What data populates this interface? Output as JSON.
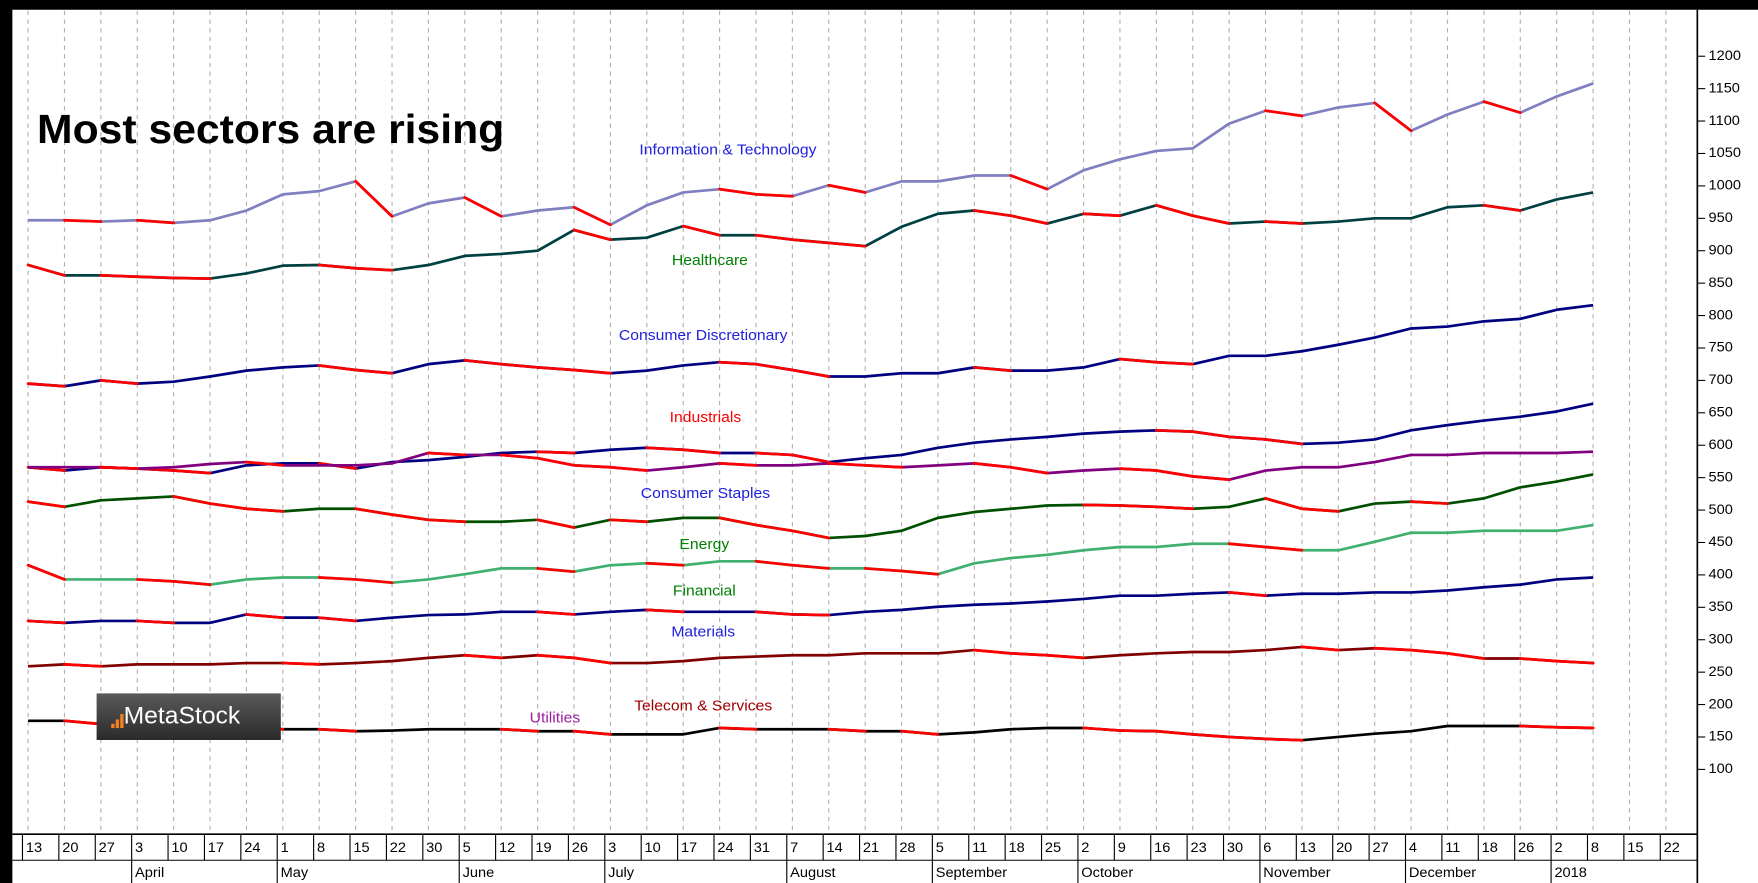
{
  "chart_data": {
    "type": "line",
    "title": "Most sectors are rising",
    "watermark": "MetaStock",
    "categories": [
      "13",
      "20",
      "27",
      "3",
      "10",
      "17",
      "24",
      "1",
      "8",
      "15",
      "22",
      "30",
      "5",
      "12",
      "19",
      "26",
      "3",
      "10",
      "17",
      "24",
      "31",
      "7",
      "14",
      "21",
      "28",
      "5",
      "11",
      "18",
      "25",
      "2",
      "9",
      "16",
      "23",
      "30",
      "6",
      "13",
      "20",
      "27",
      "4",
      "11",
      "18",
      "26",
      "2",
      "8",
      "15",
      "22"
    ],
    "month_labels": [
      "April",
      "May",
      "June",
      "July",
      "August",
      "September",
      "October",
      "November",
      "December",
      "2018"
    ],
    "down_color": "#ff0000",
    "series": [
      {
        "name": "Information & Technology",
        "color": "#8080c0",
        "label_color": "#2020e0",
        "values": [
          947,
          947,
          945,
          947,
          943,
          947,
          962,
          987,
          992,
          1007,
          953,
          973,
          982,
          953,
          962,
          967,
          940,
          970,
          990,
          995,
          987,
          984,
          1001,
          990,
          1007,
          1007,
          1016,
          1016,
          995,
          1024,
          1041,
          1054,
          1058,
          1096,
          1116,
          1108,
          1121,
          1128,
          1085,
          1110,
          1130,
          1113,
          1138,
          1158,
          null,
          null
        ]
      },
      {
        "name": "Healthcare",
        "color": "#004040",
        "label_color": "#008000",
        "values": [
          878,
          862,
          862,
          860,
          858,
          857,
          865,
          877,
          878,
          873,
          870,
          878,
          892,
          895,
          900,
          932,
          917,
          920,
          938,
          924,
          924,
          917,
          912,
          907,
          937,
          957,
          962,
          954,
          942,
          957,
          954,
          970,
          954,
          942,
          945,
          942,
          945,
          950,
          950,
          967,
          970,
          962,
          979,
          990,
          null,
          null
        ]
      },
      {
        "name": "Consumer Discretionary",
        "color": "#000080",
        "label_color": "#2020e0",
        "values": [
          695,
          691,
          700,
          695,
          698,
          706,
          715,
          720,
          723,
          716,
          711,
          725,
          731,
          725,
          720,
          716,
          711,
          715,
          723,
          728,
          725,
          716,
          706,
          706,
          711,
          711,
          720,
          715,
          715,
          720,
          733,
          728,
          725,
          738,
          738,
          745,
          755,
          766,
          780,
          783,
          791,
          795,
          809,
          816,
          null,
          null
        ]
      },
      {
        "name": "Industrials",
        "color": "#000080",
        "label_color": "#ff0000",
        "values": [
          566,
          561,
          566,
          564,
          561,
          557,
          569,
          572,
          572,
          564,
          574,
          577,
          582,
          588,
          590,
          588,
          593,
          596,
          593,
          588,
          588,
          585,
          574,
          580,
          585,
          596,
          604,
          609,
          613,
          618,
          621,
          623,
          621,
          613,
          609,
          602,
          604,
          609,
          623,
          631,
          638,
          644,
          652,
          664,
          null,
          null
        ]
      },
      {
        "name": "Utilities",
        "color": "#800080",
        "label_color": "#a020a0",
        "values": [
          566,
          566,
          566,
          564,
          566,
          571,
          574,
          569,
          569,
          569,
          572,
          588,
          585,
          585,
          580,
          569,
          566,
          561,
          566,
          572,
          569,
          569,
          572,
          569,
          566,
          569,
          572,
          566,
          557,
          561,
          564,
          561,
          552,
          547,
          561,
          566,
          566,
          574,
          585,
          585,
          588,
          588,
          588,
          590,
          null,
          null
        ]
      },
      {
        "name": "Consumer Staples",
        "color": "#005000",
        "label_color": "#2020e0",
        "values": [
          513,
          505,
          515,
          518,
          521,
          510,
          502,
          498,
          502,
          502,
          493,
          485,
          482,
          482,
          485,
          473,
          485,
          482,
          488,
          488,
          477,
          468,
          457,
          460,
          468,
          488,
          497,
          502,
          507,
          508,
          507,
          505,
          502,
          505,
          518,
          502,
          498,
          510,
          513,
          510,
          518,
          535,
          544,
          555,
          null,
          null
        ]
      },
      {
        "name": "Energy",
        "color": "#40b070",
        "label_color": "#008000",
        "values": [
          415,
          393,
          393,
          393,
          390,
          385,
          393,
          396,
          396,
          393,
          388,
          393,
          401,
          410,
          410,
          405,
          415,
          418,
          415,
          421,
          421,
          415,
          410,
          410,
          406,
          401,
          418,
          426,
          431,
          438,
          443,
          443,
          448,
          448,
          443,
          438,
          438,
          451,
          465,
          465,
          468,
          468,
          468,
          477,
          null,
          null
        ]
      },
      {
        "name": "Financial",
        "color": "#000080",
        "label_color": "#008000",
        "values": [
          329,
          326,
          329,
          329,
          326,
          326,
          339,
          334,
          334,
          329,
          334,
          338,
          339,
          343,
          343,
          339,
          343,
          346,
          343,
          343,
          343,
          339,
          338,
          343,
          346,
          351,
          354,
          356,
          359,
          363,
          368,
          368,
          371,
          373,
          368,
          371,
          371,
          373,
          373,
          376,
          381,
          385,
          393,
          396,
          null,
          null
        ]
      },
      {
        "name": "Materials",
        "color": "#800000",
        "label_color": "#2020e0",
        "values": [
          259,
          262,
          259,
          262,
          262,
          262,
          264,
          264,
          262,
          264,
          267,
          272,
          276,
          272,
          276,
          272,
          264,
          264,
          267,
          272,
          274,
          276,
          276,
          279,
          279,
          279,
          284,
          279,
          276,
          272,
          276,
          279,
          281,
          281,
          284,
          289,
          284,
          287,
          284,
          279,
          271,
          271,
          267,
          264,
          null,
          null
        ]
      },
      {
        "name": "Telecom & Services",
        "color": "#000000",
        "label_color": "#a00000",
        "values": [
          175,
          175,
          170,
          167,
          167,
          164,
          164,
          162,
          162,
          159,
          160,
          162,
          162,
          162,
          159,
          159,
          154,
          154,
          154,
          164,
          162,
          162,
          162,
          159,
          159,
          154,
          157,
          162,
          164,
          164,
          160,
          159,
          154,
          150,
          147,
          145,
          150,
          155,
          159,
          167,
          167,
          167,
          165,
          164,
          null,
          null
        ]
      }
    ],
    "ylim": [
      0,
      1270
    ],
    "yticks": [
      100,
      150,
      200,
      250,
      300,
      350,
      400,
      450,
      500,
      550,
      600,
      650,
      700,
      750,
      800,
      850,
      900,
      950,
      1000,
      1050,
      1100,
      1150,
      1200
    ],
    "grid": true
  }
}
